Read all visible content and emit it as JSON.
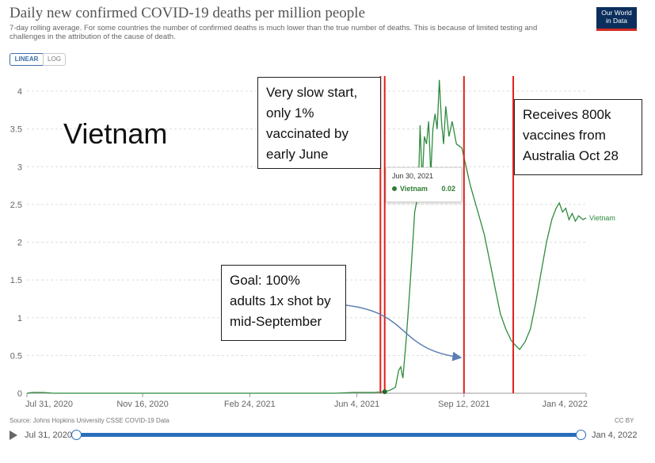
{
  "header": {
    "title": "Daily new confirmed COVID-19 deaths per million people",
    "subtitle": "7-day rolling average. For some countries the number of confirmed deaths is much lower than the true number of deaths. This is because of limited testing and challenges in the attribution of the cause of death.",
    "logo_text_1": "Our World",
    "logo_text_2": "in Data"
  },
  "controls": {
    "linear_label": "LINEAR",
    "log_label": "LOG"
  },
  "annotations": {
    "country": "Vietnam",
    "box1": [
      "Very slow start,",
      "only 1%",
      "vaccinated by",
      "early June"
    ],
    "box2": [
      "Receives 800k",
      "vaccines from",
      "Australia Oct 28"
    ],
    "box3": [
      "Goal: 100%",
      "adults 1x shot by",
      "mid-September"
    ]
  },
  "tooltip": {
    "date": "Jun 30, 2021",
    "series": "Vietnam",
    "value": "0.02"
  },
  "footer": {
    "source": "Source: Johns Hopkins University CSSE COVID-19 Data",
    "license": "CC BY"
  },
  "timeline": {
    "start": "Jul 31, 2020",
    "end": "Jan 4, 2022"
  },
  "colors": {
    "series": "#2e8b3e",
    "markers": "#e0201b",
    "axis": "#9a9a9a",
    "grid": "#dddddd"
  },
  "chart_data": {
    "type": "line",
    "title": "Daily new confirmed COVID-19 deaths per million people",
    "ylim": [
      0,
      4.2
    ],
    "yticks": [
      0,
      0.5,
      1,
      1.5,
      2,
      2.5,
      3,
      3.5,
      4
    ],
    "ytick_labels": [
      "0",
      "0.5",
      "1",
      "1.5",
      "2",
      "2.5",
      "3",
      "3.5",
      "4"
    ],
    "xlim": [
      "2020-07-31",
      "2022-01-04"
    ],
    "xticks": [
      "2020-07-31",
      "2020-11-16",
      "2021-02-24",
      "2021-06-04",
      "2021-09-12",
      "2022-01-04"
    ],
    "xtick_labels": [
      "Jul 31, 2020",
      "Nov 16, 2020",
      "Feb 24, 2021",
      "Jun 4, 2021",
      "Sep 12, 2021",
      "Jan 4, 2022"
    ],
    "grid": true,
    "series": [
      {
        "name": "Vietnam",
        "points": [
          [
            "2020-07-31",
            0.0
          ],
          [
            "2020-08-05",
            0.01
          ],
          [
            "2020-08-15",
            0.01
          ],
          [
            "2020-08-25",
            0.0
          ],
          [
            "2021-05-15",
            0.0
          ],
          [
            "2021-06-01",
            0.01
          ],
          [
            "2021-06-20",
            0.01
          ],
          [
            "2021-06-30",
            0.02
          ],
          [
            "2021-07-05",
            0.04
          ],
          [
            "2021-07-10",
            0.08
          ],
          [
            "2021-07-13",
            0.3
          ],
          [
            "2021-07-15",
            0.35
          ],
          [
            "2021-07-17",
            0.2
          ],
          [
            "2021-07-20",
            0.7
          ],
          [
            "2021-07-24",
            1.5
          ],
          [
            "2021-07-28",
            2.4
          ],
          [
            "2021-07-30",
            2.55
          ],
          [
            "2021-08-01",
            3.0
          ],
          [
            "2021-08-02",
            3.55
          ],
          [
            "2021-08-04",
            2.8
          ],
          [
            "2021-08-06",
            3.4
          ],
          [
            "2021-08-08",
            3.3
          ],
          [
            "2021-08-10",
            3.6
          ],
          [
            "2021-08-12",
            2.9
          ],
          [
            "2021-08-14",
            3.5
          ],
          [
            "2021-08-16",
            3.7
          ],
          [
            "2021-08-18",
            3.5
          ],
          [
            "2021-08-20",
            4.15
          ],
          [
            "2021-08-22",
            3.6
          ],
          [
            "2021-08-24",
            3.3
          ],
          [
            "2021-08-26",
            3.8
          ],
          [
            "2021-08-29",
            3.4
          ],
          [
            "2021-09-01",
            3.6
          ],
          [
            "2021-09-05",
            3.3
          ],
          [
            "2021-09-10",
            3.25
          ],
          [
            "2021-09-14",
            3.0
          ],
          [
            "2021-09-18",
            2.75
          ],
          [
            "2021-09-22",
            2.55
          ],
          [
            "2021-09-26",
            2.35
          ],
          [
            "2021-10-01",
            2.1
          ],
          [
            "2021-10-06",
            1.75
          ],
          [
            "2021-10-11",
            1.4
          ],
          [
            "2021-10-16",
            1.05
          ],
          [
            "2021-10-21",
            0.85
          ],
          [
            "2021-10-26",
            0.7
          ],
          [
            "2021-10-31",
            0.62
          ],
          [
            "2021-11-03",
            0.58
          ],
          [
            "2021-11-08",
            0.68
          ],
          [
            "2021-11-13",
            0.85
          ],
          [
            "2021-11-18",
            1.2
          ],
          [
            "2021-11-23",
            1.6
          ],
          [
            "2021-11-28",
            2.0
          ],
          [
            "2021-12-03",
            2.3
          ],
          [
            "2021-12-07",
            2.45
          ],
          [
            "2021-12-10",
            2.52
          ],
          [
            "2021-12-13",
            2.4
          ],
          [
            "2021-12-16",
            2.45
          ],
          [
            "2021-12-19",
            2.3
          ],
          [
            "2021-12-22",
            2.38
          ],
          [
            "2021-12-25",
            2.28
          ],
          [
            "2021-12-28",
            2.35
          ],
          [
            "2022-01-01",
            2.3
          ],
          [
            "2022-01-04",
            2.32
          ]
        ]
      }
    ],
    "vertical_markers": [
      "2021-06-26",
      "2021-06-30",
      "2021-09-12",
      "2021-10-28"
    ],
    "series_end_label": "Vietnam"
  }
}
